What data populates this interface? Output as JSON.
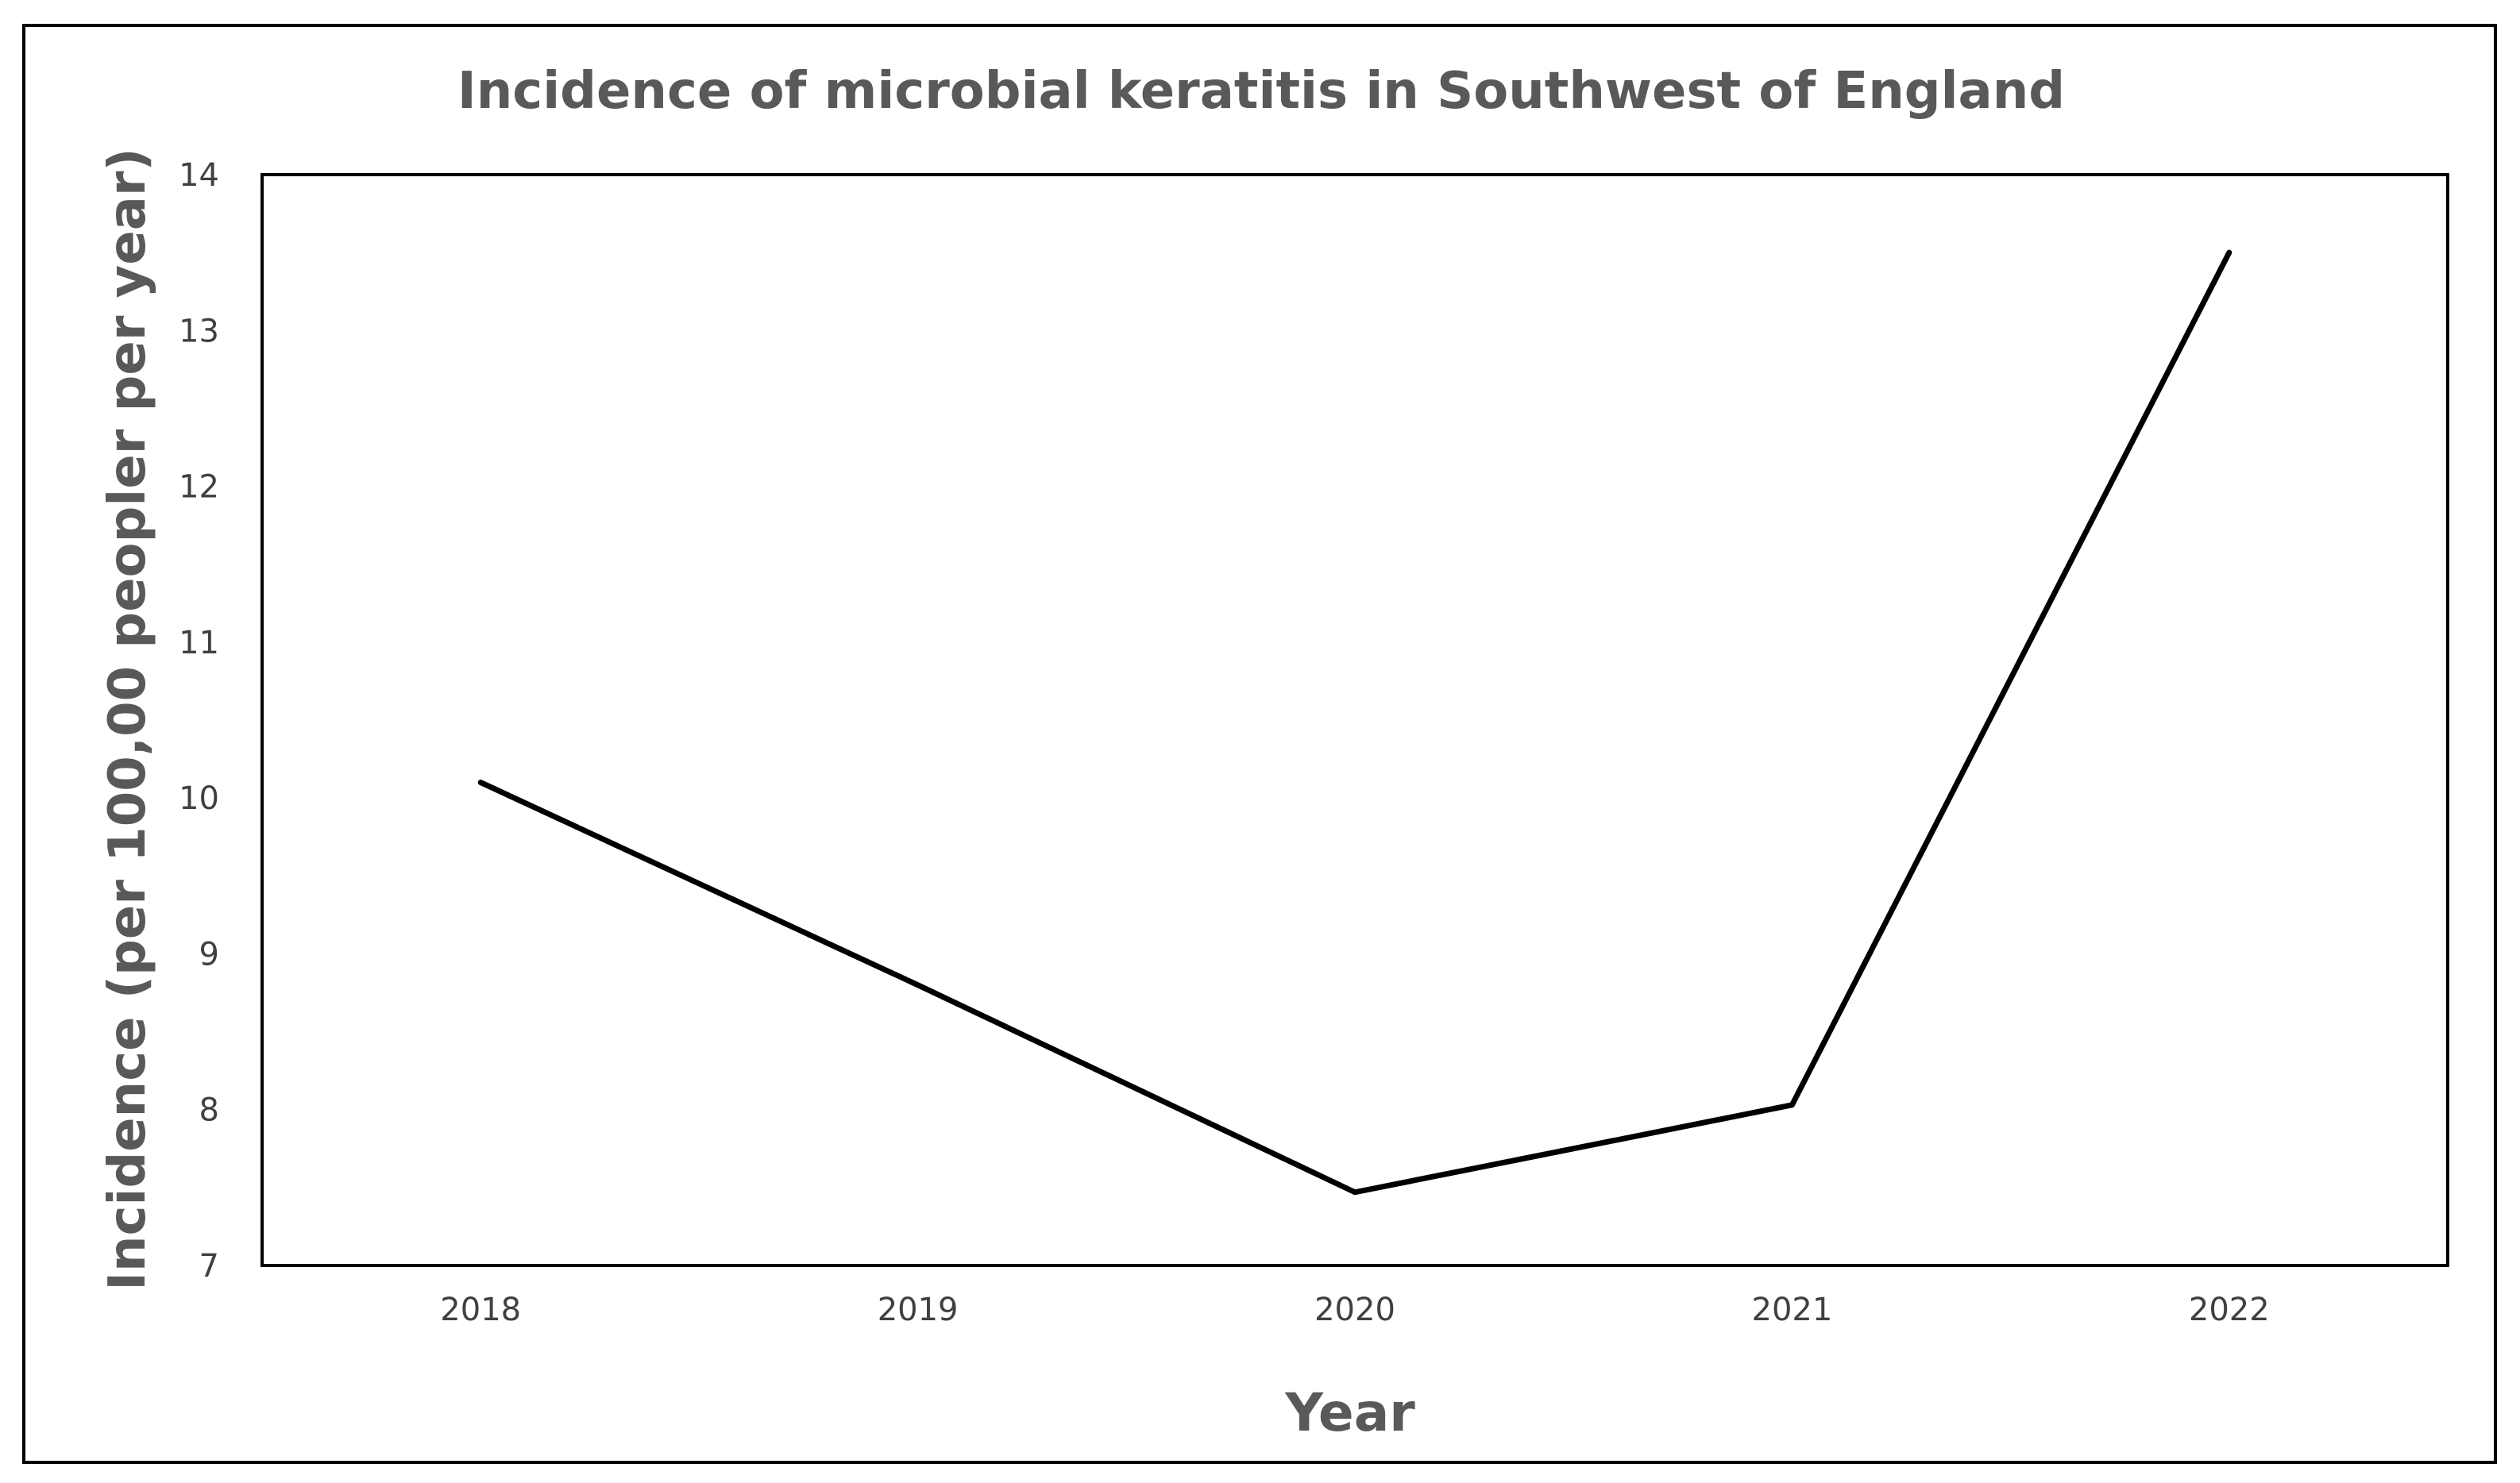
{
  "chart_data": {
    "type": "line",
    "title": "Incidence of microbial keratitis in Southwest of England",
    "xlabel": "Year",
    "ylabel": "Incidence (per 100,00 peopler per year)",
    "categories": [
      "2018",
      "2019",
      "2020",
      "2021",
      "2022"
    ],
    "series": [
      {
        "name": "Incidence",
        "values": [
          10.1,
          8.8,
          7.47,
          8.03,
          13.5
        ]
      }
    ],
    "ylim": [
      7,
      14
    ],
    "yticks": [
      7,
      8,
      9,
      10,
      11,
      12,
      13,
      14
    ],
    "grid": false,
    "legend": "none",
    "colors": {
      "line": "#000000",
      "text": "#595959",
      "ticks": "#404040",
      "frame": "#000000"
    }
  }
}
